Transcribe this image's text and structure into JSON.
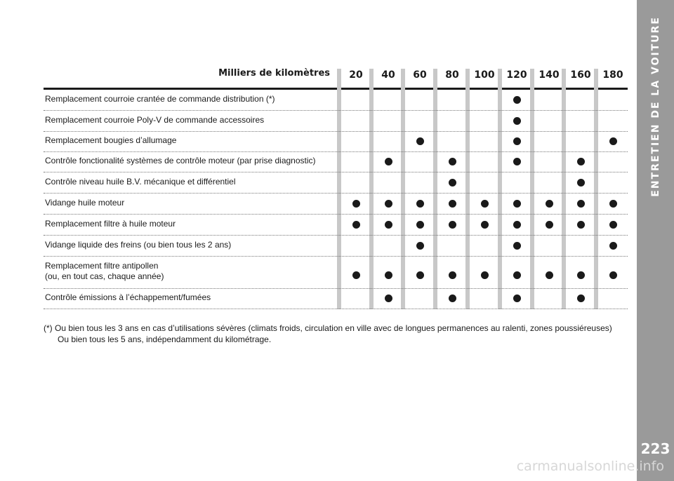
{
  "side": {
    "title": "ENTRETIEN DE LA VOITURE",
    "page_number": "223"
  },
  "watermark": "carmanualsonline.info",
  "table": {
    "header_title": "Milliers de kilomètres",
    "columns": [
      "20",
      "40",
      "60",
      "80",
      "100",
      "120",
      "140",
      "160",
      "180"
    ],
    "rows": [
      {
        "label": [
          "Remplacement courroie crantée de commande distribution (*)"
        ],
        "marks": [
          0,
          0,
          0,
          0,
          0,
          1,
          0,
          0,
          0
        ]
      },
      {
        "label": [
          "Remplacement courroie Poly-V de commande accessoires"
        ],
        "marks": [
          0,
          0,
          0,
          0,
          0,
          1,
          0,
          0,
          0
        ]
      },
      {
        "label": [
          "Remplacement bougies d’allumage"
        ],
        "marks": [
          0,
          0,
          1,
          0,
          0,
          1,
          0,
          0,
          1
        ]
      },
      {
        "label": [
          "Contrôle fonctionalité systèmes de contrôle moteur (par prise diagnostic)"
        ],
        "marks": [
          0,
          1,
          0,
          1,
          0,
          1,
          0,
          1,
          0
        ]
      },
      {
        "label": [
          "Contrôle niveau huile B.V. mécanique et différentiel"
        ],
        "marks": [
          0,
          0,
          0,
          1,
          0,
          0,
          0,
          1,
          0
        ]
      },
      {
        "label": [
          "Vidange huile moteur"
        ],
        "marks": [
          1,
          1,
          1,
          1,
          1,
          1,
          1,
          1,
          1
        ]
      },
      {
        "label": [
          "Remplacement filtre à huile moteur"
        ],
        "marks": [
          1,
          1,
          1,
          1,
          1,
          1,
          1,
          1,
          1
        ]
      },
      {
        "label": [
          "Vidange liquide des freins (ou bien tous les 2 ans)"
        ],
        "marks": [
          0,
          0,
          1,
          0,
          0,
          1,
          0,
          0,
          1
        ]
      },
      {
        "label": [
          "Remplacement filtre antipollen",
          "(ou, en tout cas, chaque année)"
        ],
        "marks": [
          1,
          1,
          1,
          1,
          1,
          1,
          1,
          1,
          1
        ]
      },
      {
        "label": [
          "Contrôle émissions à l’échappement/fumées"
        ],
        "marks": [
          0,
          1,
          0,
          1,
          0,
          1,
          0,
          1,
          0
        ]
      }
    ]
  },
  "footnote": {
    "line1": "(*) Ou bien tous les 3 ans en cas d’utilisations sévères (climats froids, circulation en ville avec de longues permanences au ralenti, zones poussiéreuses)",
    "line2": "Ou bien tous les 5 ans, indépendamment du kilométrage."
  },
  "colors": {
    "side_band": "#9a9a9a",
    "stripe": "#c8c8c8",
    "dot": "#1a1a1a"
  }
}
